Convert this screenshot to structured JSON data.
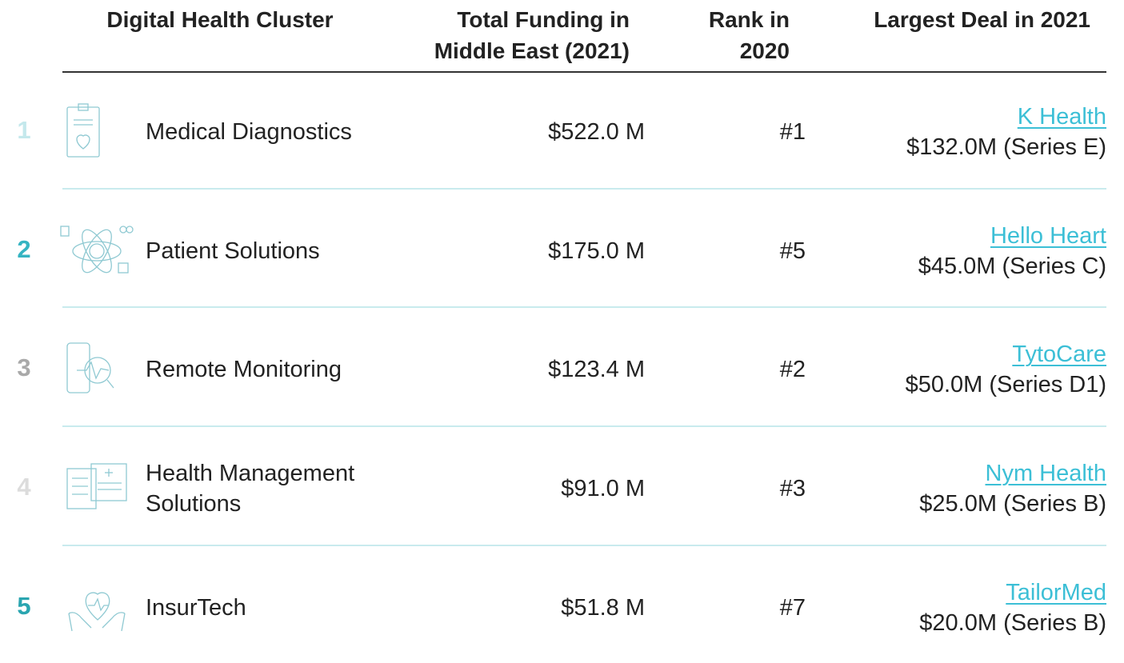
{
  "table": {
    "headers": [
      "Digital Health Cluster",
      "Total Funding in Middle East (2021)",
      "Rank in 2020",
      "Largest Deal in 2021"
    ],
    "rows": [
      {
        "number": "1",
        "cluster": "Medical Diagnostics",
        "funding": "$522.0 M",
        "rank": "#1",
        "company": "K Health",
        "deal": "$132.0M (Series E)"
      },
      {
        "number": "2",
        "cluster": "Patient Solutions",
        "funding": "$175.0 M",
        "rank": "#5",
        "company": "Hello Heart",
        "deal": "$45.0M (Series C)"
      },
      {
        "number": "3",
        "cluster": "Remote Monitoring",
        "funding": "$123.4 M",
        "rank": "#2",
        "company": "TytoCare",
        "deal": "$50.0M (Series D1)"
      },
      {
        "number": "4",
        "cluster": "Health Management Solutions",
        "funding": "$91.0 M",
        "rank": "#3",
        "company": "Nym Health",
        "deal": "$25.0M (Series B)"
      },
      {
        "number": "5",
        "cluster": "InsurTech",
        "funding": "$51.8 M",
        "rank": "#7",
        "company": "TailorMed",
        "deal": "$20.0M (Series B)"
      }
    ]
  }
}
